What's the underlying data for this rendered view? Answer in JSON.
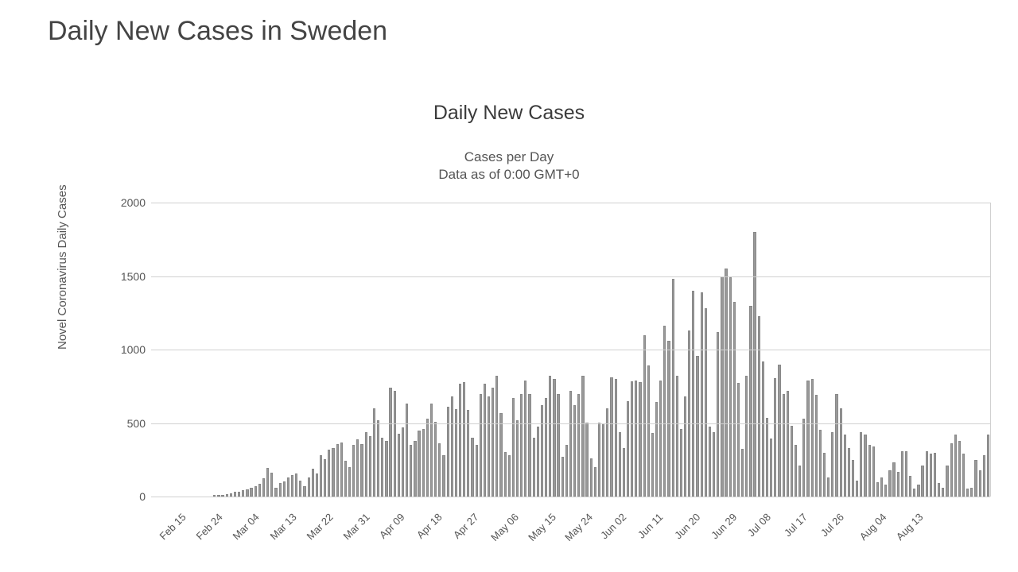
{
  "page_title": "Daily New Cases in Sweden",
  "chart": {
    "type": "bar",
    "title": "Daily New Cases",
    "subtitle_line1": "Cases per Day",
    "subtitle_line2": "Data as of 0:00 GMT+0",
    "y_axis_label": "Novel Coronavirus Daily Cases",
    "ylim": [
      0,
      2000
    ],
    "ytick_step": 500,
    "bar_color": "#999999",
    "bar_border_color": "#888888",
    "grid_color": "#d0d0d0",
    "background_color": "#ffffff",
    "title_color": "#3b3b3b",
    "subtitle_color": "#555555",
    "axis_text_color": "#555555",
    "page_title_color": "#444444",
    "page_title_fontsize": 34,
    "title_fontsize": 25,
    "subtitle_fontsize": 17,
    "axis_label_fontsize": 15,
    "tick_fontsize": 14,
    "x_tick_fontsize": 13,
    "x_tick_rotation_deg": -45,
    "x_tick_interval_days": 9,
    "x_labels": [
      "Feb 15",
      "Feb 24",
      "Mar 04",
      "Mar 13",
      "Mar 22",
      "Mar 31",
      "Apr 09",
      "Apr 18",
      "Apr 27",
      "May 06",
      "May 15",
      "May 24",
      "Jun 02",
      "Jun 11",
      "Jun 20",
      "Jun 29",
      "Jul 08",
      "Jul 17",
      "Jul 26",
      "Aug 04",
      "Aug 13"
    ],
    "start_date": "Feb 15",
    "end_date": "Aug 13",
    "values": [
      0,
      0,
      0,
      0,
      0,
      0,
      0,
      0,
      0,
      0,
      0,
      0,
      0,
      0,
      0,
      5,
      8,
      12,
      18,
      22,
      30,
      35,
      42,
      50,
      58,
      68,
      85,
      125,
      195,
      160,
      60,
      90,
      105,
      130,
      145,
      155,
      110,
      70,
      130,
      190,
      155,
      280,
      255,
      320,
      330,
      355,
      370,
      245,
      200,
      350,
      390,
      355,
      440,
      410,
      600,
      520,
      400,
      380,
      740,
      720,
      425,
      470,
      635,
      350,
      380,
      450,
      460,
      530,
      635,
      510,
      360,
      280,
      610,
      680,
      595,
      770,
      780,
      590,
      400,
      350,
      700,
      768,
      680,
      740,
      820,
      570,
      305,
      280,
      670,
      520,
      700,
      790,
      700,
      400,
      475,
      620,
      670,
      820,
      800,
      700,
      270,
      350,
      720,
      620,
      700,
      820,
      505,
      260,
      200,
      505,
      500,
      600,
      810,
      800,
      440,
      330,
      650,
      785,
      790,
      780,
      1100,
      890,
      430,
      645,
      790,
      1160,
      1060,
      1480,
      820,
      460,
      680,
      1130,
      1400,
      955,
      1390,
      1280,
      475,
      440,
      1120,
      1500,
      1550,
      1490,
      1325,
      775,
      325,
      820,
      1300,
      1800,
      1225,
      920,
      535,
      395,
      805,
      900,
      700,
      720,
      480,
      350,
      210,
      530,
      790,
      800,
      690,
      455,
      300,
      130,
      440,
      700,
      600,
      420,
      330,
      250,
      110,
      440,
      420,
      350,
      343,
      100,
      130,
      80,
      180,
      230,
      168,
      310,
      310,
      140,
      55,
      80,
      210,
      310,
      290,
      300,
      90,
      60,
      210,
      360,
      420,
      380,
      290,
      55,
      60,
      250,
      180,
      280,
      420
    ]
  }
}
